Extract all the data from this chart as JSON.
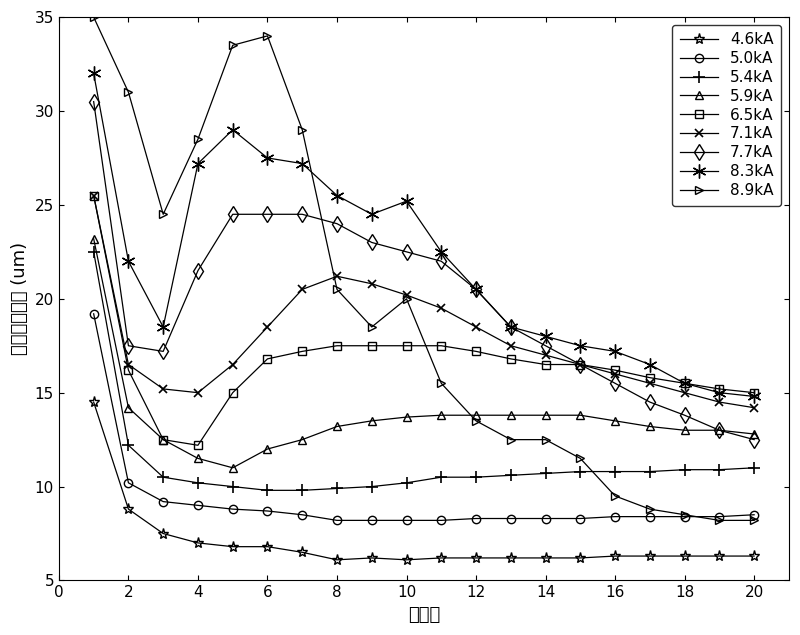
{
  "title": "",
  "xlabel": "序列号",
  "ylabel": "位移波动峰値 (um)",
  "xlim": [
    0,
    21
  ],
  "ylim": [
    5,
    35
  ],
  "xticks": [
    0,
    2,
    4,
    6,
    8,
    10,
    12,
    14,
    16,
    18,
    20
  ],
  "yticks": [
    5,
    10,
    15,
    20,
    25,
    30,
    35
  ],
  "series": [
    {
      "label": "4.6kA",
      "marker": "*",
      "color": "black",
      "x": [
        1,
        2,
        3,
        4,
        5,
        6,
        7,
        8,
        9,
        10,
        11,
        12,
        13,
        14,
        15,
        16,
        17,
        18,
        19,
        20
      ],
      "y": [
        14.5,
        8.8,
        7.5,
        7.0,
        6.8,
        6.8,
        6.5,
        6.1,
        6.2,
        6.1,
        6.2,
        6.2,
        6.2,
        6.2,
        6.2,
        6.3,
        6.3,
        6.3,
        6.3,
        6.3
      ]
    },
    {
      "label": "5.0kA",
      "marker": "o",
      "color": "black",
      "x": [
        1,
        2,
        3,
        4,
        5,
        6,
        7,
        8,
        9,
        10,
        11,
        12,
        13,
        14,
        15,
        16,
        17,
        18,
        19,
        20
      ],
      "y": [
        19.2,
        10.2,
        9.2,
        9.0,
        8.8,
        8.7,
        8.5,
        8.2,
        8.2,
        8.2,
        8.2,
        8.3,
        8.3,
        8.3,
        8.3,
        8.4,
        8.4,
        8.4,
        8.4,
        8.5
      ]
    },
    {
      "label": "5.4kA",
      "marker": "+",
      "color": "black",
      "x": [
        1,
        2,
        3,
        4,
        5,
        6,
        7,
        8,
        9,
        10,
        11,
        12,
        13,
        14,
        15,
        16,
        17,
        18,
        19,
        20
      ],
      "y": [
        22.5,
        12.2,
        10.5,
        10.2,
        10.0,
        9.8,
        9.8,
        9.9,
        10.0,
        10.2,
        10.5,
        10.5,
        10.6,
        10.7,
        10.8,
        10.8,
        10.8,
        10.9,
        10.9,
        11.0
      ]
    },
    {
      "label": "5.9kA",
      "marker": "^",
      "color": "black",
      "x": [
        1,
        2,
        3,
        4,
        5,
        6,
        7,
        8,
        9,
        10,
        11,
        12,
        13,
        14,
        15,
        16,
        17,
        18,
        19,
        20
      ],
      "y": [
        23.2,
        14.2,
        12.5,
        11.5,
        11.0,
        12.0,
        12.5,
        13.2,
        13.5,
        13.7,
        13.8,
        13.8,
        13.8,
        13.8,
        13.8,
        13.5,
        13.2,
        13.0,
        13.0,
        12.8
      ]
    },
    {
      "label": "6.5kA",
      "marker": "s",
      "color": "black",
      "x": [
        1,
        2,
        3,
        4,
        5,
        6,
        7,
        8,
        9,
        10,
        11,
        12,
        13,
        14,
        15,
        16,
        17,
        18,
        19,
        20
      ],
      "y": [
        25.5,
        16.2,
        12.5,
        12.2,
        15.0,
        16.8,
        17.2,
        17.5,
        17.5,
        17.5,
        17.5,
        17.2,
        16.8,
        16.5,
        16.5,
        16.2,
        15.8,
        15.5,
        15.2,
        15.0
      ]
    },
    {
      "label": "7.1kA",
      "marker": "x",
      "color": "black",
      "x": [
        1,
        2,
        3,
        4,
        5,
        6,
        7,
        8,
        9,
        10,
        11,
        12,
        13,
        14,
        15,
        16,
        17,
        18,
        19,
        20
      ],
      "y": [
        25.5,
        16.5,
        15.2,
        15.0,
        16.5,
        18.5,
        20.5,
        21.2,
        20.8,
        20.2,
        19.5,
        18.5,
        17.5,
        17.0,
        16.5,
        16.0,
        15.5,
        15.0,
        14.5,
        14.2
      ]
    },
    {
      "label": "7.7kA",
      "marker": "D",
      "color": "black",
      "x": [
        1,
        2,
        3,
        4,
        5,
        6,
        7,
        8,
        9,
        10,
        11,
        12,
        13,
        14,
        15,
        16,
        17,
        18,
        19,
        20
      ],
      "y": [
        30.5,
        17.5,
        17.2,
        21.5,
        24.5,
        24.5,
        24.5,
        24.0,
        23.0,
        22.5,
        22.0,
        20.5,
        18.5,
        17.5,
        16.5,
        15.5,
        14.5,
        13.8,
        13.0,
        12.5
      ]
    },
    {
      "label": "8.3kA",
      "marker": "star",
      "color": "black",
      "x": [
        1,
        2,
        3,
        4,
        5,
        6,
        7,
        8,
        9,
        10,
        11,
        12,
        13,
        14,
        15,
        16,
        17,
        18,
        19,
        20
      ],
      "y": [
        32.0,
        22.0,
        18.5,
        27.2,
        29.0,
        27.5,
        27.2,
        25.5,
        24.5,
        25.2,
        22.5,
        20.5,
        18.5,
        18.0,
        17.5,
        17.2,
        16.5,
        15.5,
        15.0,
        14.8
      ]
    },
    {
      "label": "8.9kA",
      "marker": ">",
      "color": "black",
      "x": [
        1,
        2,
        3,
        4,
        5,
        6,
        7,
        8,
        9,
        10,
        11,
        12,
        13,
        14,
        15,
        16,
        17,
        18,
        19,
        20
      ],
      "y": [
        35.0,
        31.0,
        24.5,
        28.5,
        33.5,
        34.0,
        29.0,
        20.5,
        18.5,
        20.0,
        15.5,
        13.5,
        12.5,
        12.5,
        11.5,
        9.5,
        8.8,
        8.5,
        8.2,
        8.2
      ]
    }
  ],
  "legend_loc": "upper right",
  "figure_facecolor": "#ffffff",
  "axes_facecolor": "#ffffff",
  "fontsize_label": 13,
  "fontsize_legend": 11,
  "fontsize_tick": 11
}
